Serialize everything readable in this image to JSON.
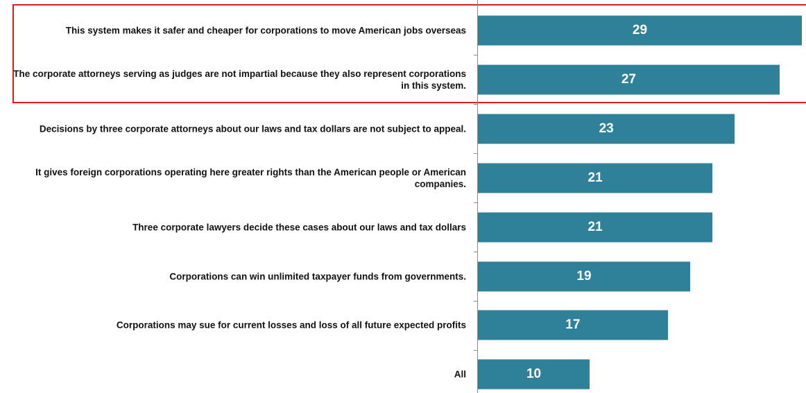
{
  "chart_data": {
    "type": "bar",
    "orientation": "horizontal",
    "color": "#2f8199",
    "categories": [
      "This system makes it safer and cheaper for corporations to move American jobs overseas",
      "The corporate attorneys serving as judges are not impartial because they also represent corporations in this system.",
      "Decisions by three corporate attorneys about our laws and tax dollars are not subject to appeal.",
      "It gives foreign corporations operating here greater rights than the American people or American companies.",
      "Three corporate lawyers decide these cases about our laws and tax dollars",
      "Corporations can win unlimited taxpayer funds from governments.",
      "Corporations may sue for current losses and loss of all future expected profits",
      "All"
    ],
    "values": [
      29,
      27,
      23,
      21,
      21,
      19,
      17,
      10
    ]
  }
}
